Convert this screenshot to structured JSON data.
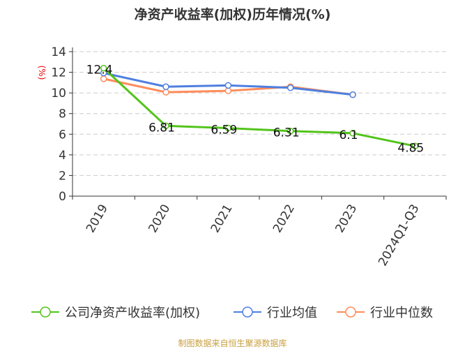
{
  "title": "净资产收益率(加权)历年情况(%)",
  "footer": "制图数据来自恒生聚源数据库",
  "chart_data": {
    "type": "line",
    "title": "净资产收益率(加权)历年情况(%)",
    "ylabel": "(%)",
    "ylim": [
      0,
      14
    ],
    "yticks": [
      0,
      2,
      4,
      6,
      8,
      10,
      12,
      14
    ],
    "grid": true,
    "legend": "bottom",
    "categories": [
      "2019",
      "2020",
      "2021",
      "2022",
      "2023",
      "2024Q1-Q3"
    ],
    "series": [
      {
        "name": "公司净资产收益率(加权)",
        "color": "#52c41a",
        "values": [
          12.4,
          6.81,
          6.59,
          6.31,
          6.1,
          4.85
        ],
        "labels": [
          "12.4",
          "6.81",
          "6.59",
          "6.31",
          "6.1",
          "4.85"
        ]
      },
      {
        "name": "行业均值",
        "color": "#4f7fe0",
        "values": [
          11.93,
          10.6,
          10.73,
          10.5,
          9.83,
          null
        ]
      },
      {
        "name": "行业中位数",
        "color": "#ff8c5a",
        "values": [
          11.37,
          10.07,
          10.2,
          10.6,
          9.83,
          null
        ]
      }
    ]
  }
}
